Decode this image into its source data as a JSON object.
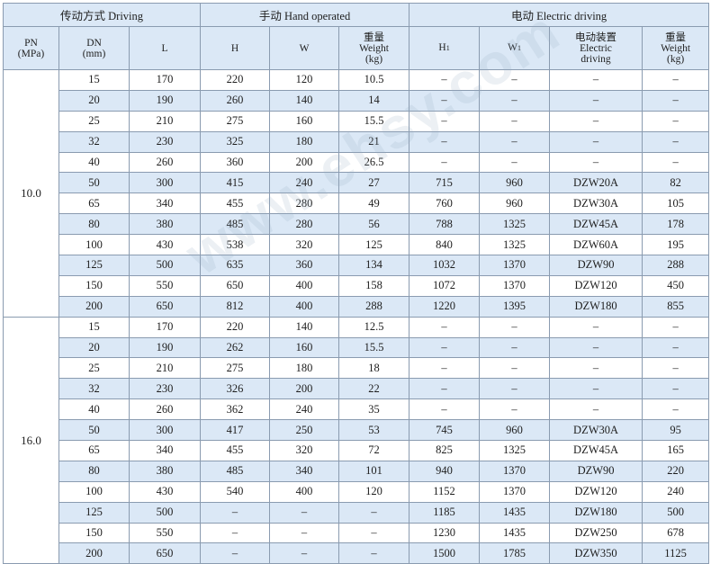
{
  "headers": {
    "driving": "传动方式 Driving",
    "hand": "手动 Hand operated",
    "electric": "电动 Electric driving",
    "pn_line1": "PN",
    "pn_line2": "(MPa)",
    "dn_line1": "DN",
    "dn_line2": "(mm)",
    "l": "L",
    "h": "H",
    "w": "W",
    "weight_cn": "重量",
    "weight_en": "Weight",
    "weight_unit": "(kg)",
    "h1": "H",
    "h1_sub": "1",
    "w1": "W",
    "w1_sub": "1",
    "device_cn": "电动装置",
    "device_en1": "Electric",
    "device_en2": "driving",
    "weight2_cn": "重量",
    "weight2_en": "Weight",
    "weight2_unit": "(kg)"
  },
  "groups": [
    {
      "pn": "10.0",
      "rows": [
        {
          "dn": "15",
          "l": "170",
          "h": "220",
          "w": "120",
          "weight": "10.5",
          "h1": "–",
          "w1": "–",
          "device": "–",
          "eweight": "–"
        },
        {
          "dn": "20",
          "l": "190",
          "h": "260",
          "w": "140",
          "weight": "14",
          "h1": "–",
          "w1": "–",
          "device": "–",
          "eweight": "–"
        },
        {
          "dn": "25",
          "l": "210",
          "h": "275",
          "w": "160",
          "weight": "15.5",
          "h1": "–",
          "w1": "–",
          "device": "–",
          "eweight": "–"
        },
        {
          "dn": "32",
          "l": "230",
          "h": "325",
          "w": "180",
          "weight": "21",
          "h1": "–",
          "w1": "–",
          "device": "–",
          "eweight": "–"
        },
        {
          "dn": "40",
          "l": "260",
          "h": "360",
          "w": "200",
          "weight": "26.5",
          "h1": "–",
          "w1": "–",
          "device": "–",
          "eweight": "–"
        },
        {
          "dn": "50",
          "l": "300",
          "h": "415",
          "w": "240",
          "weight": "27",
          "h1": "715",
          "w1": "960",
          "device": "DZW20A",
          "eweight": "82"
        },
        {
          "dn": "65",
          "l": "340",
          "h": "455",
          "w": "280",
          "weight": "49",
          "h1": "760",
          "w1": "960",
          "device": "DZW30A",
          "eweight": "105"
        },
        {
          "dn": "80",
          "l": "380",
          "h": "485",
          "w": "280",
          "weight": "56",
          "h1": "788",
          "w1": "1325",
          "device": "DZW45A",
          "eweight": "178"
        },
        {
          "dn": "100",
          "l": "430",
          "h": "538",
          "w": "320",
          "weight": "125",
          "h1": "840",
          "w1": "1325",
          "device": "DZW60A",
          "eweight": "195"
        },
        {
          "dn": "125",
          "l": "500",
          "h": "635",
          "w": "360",
          "weight": "134",
          "h1": "1032",
          "w1": "1370",
          "device": "DZW90",
          "eweight": "288"
        },
        {
          "dn": "150",
          "l": "550",
          "h": "650",
          "w": "400",
          "weight": "158",
          "h1": "1072",
          "w1": "1370",
          "device": "DZW120",
          "eweight": "450"
        },
        {
          "dn": "200",
          "l": "650",
          "h": "812",
          "w": "400",
          "weight": "288",
          "h1": "1220",
          "w1": "1395",
          "device": "DZW180",
          "eweight": "855"
        }
      ]
    },
    {
      "pn": "16.0",
      "rows": [
        {
          "dn": "15",
          "l": "170",
          "h": "220",
          "w": "140",
          "weight": "12.5",
          "h1": "–",
          "w1": "–",
          "device": "–",
          "eweight": "–"
        },
        {
          "dn": "20",
          "l": "190",
          "h": "262",
          "w": "160",
          "weight": "15.5",
          "h1": "–",
          "w1": "–",
          "device": "–",
          "eweight": "–"
        },
        {
          "dn": "25",
          "l": "210",
          "h": "275",
          "w": "180",
          "weight": "18",
          "h1": "–",
          "w1": "–",
          "device": "–",
          "eweight": "–"
        },
        {
          "dn": "32",
          "l": "230",
          "h": "326",
          "w": "200",
          "weight": "22",
          "h1": "–",
          "w1": "–",
          "device": "–",
          "eweight": "–"
        },
        {
          "dn": "40",
          "l": "260",
          "h": "362",
          "w": "240",
          "weight": "35",
          "h1": "–",
          "w1": "–",
          "device": "–",
          "eweight": "–"
        },
        {
          "dn": "50",
          "l": "300",
          "h": "417",
          "w": "250",
          "weight": "53",
          "h1": "745",
          "w1": "960",
          "device": "DZW30A",
          "eweight": "95"
        },
        {
          "dn": "65",
          "l": "340",
          "h": "455",
          "w": "320",
          "weight": "72",
          "h1": "825",
          "w1": "1325",
          "device": "DZW45A",
          "eweight": "165"
        },
        {
          "dn": "80",
          "l": "380",
          "h": "485",
          "w": "340",
          "weight": "101",
          "h1": "940",
          "w1": "1370",
          "device": "DZW90",
          "eweight": "220"
        },
        {
          "dn": "100",
          "l": "430",
          "h": "540",
          "w": "400",
          "weight": "120",
          "h1": "1152",
          "w1": "1370",
          "device": "DZW120",
          "eweight": "240"
        },
        {
          "dn": "125",
          "l": "500",
          "h": "–",
          "w": "–",
          "weight": "–",
          "h1": "1185",
          "w1": "1435",
          "device": "DZW180",
          "eweight": "500"
        },
        {
          "dn": "150",
          "l": "550",
          "h": "–",
          "w": "–",
          "weight": "–",
          "h1": "1230",
          "w1": "1435",
          "device": "DZW250",
          "eweight": "678"
        },
        {
          "dn": "200",
          "l": "650",
          "h": "–",
          "w": "–",
          "weight": "–",
          "h1": "1500",
          "w1": "1785",
          "device": "DZW350",
          "eweight": "1125"
        }
      ]
    }
  ],
  "watermark": "www.ehsy.com"
}
